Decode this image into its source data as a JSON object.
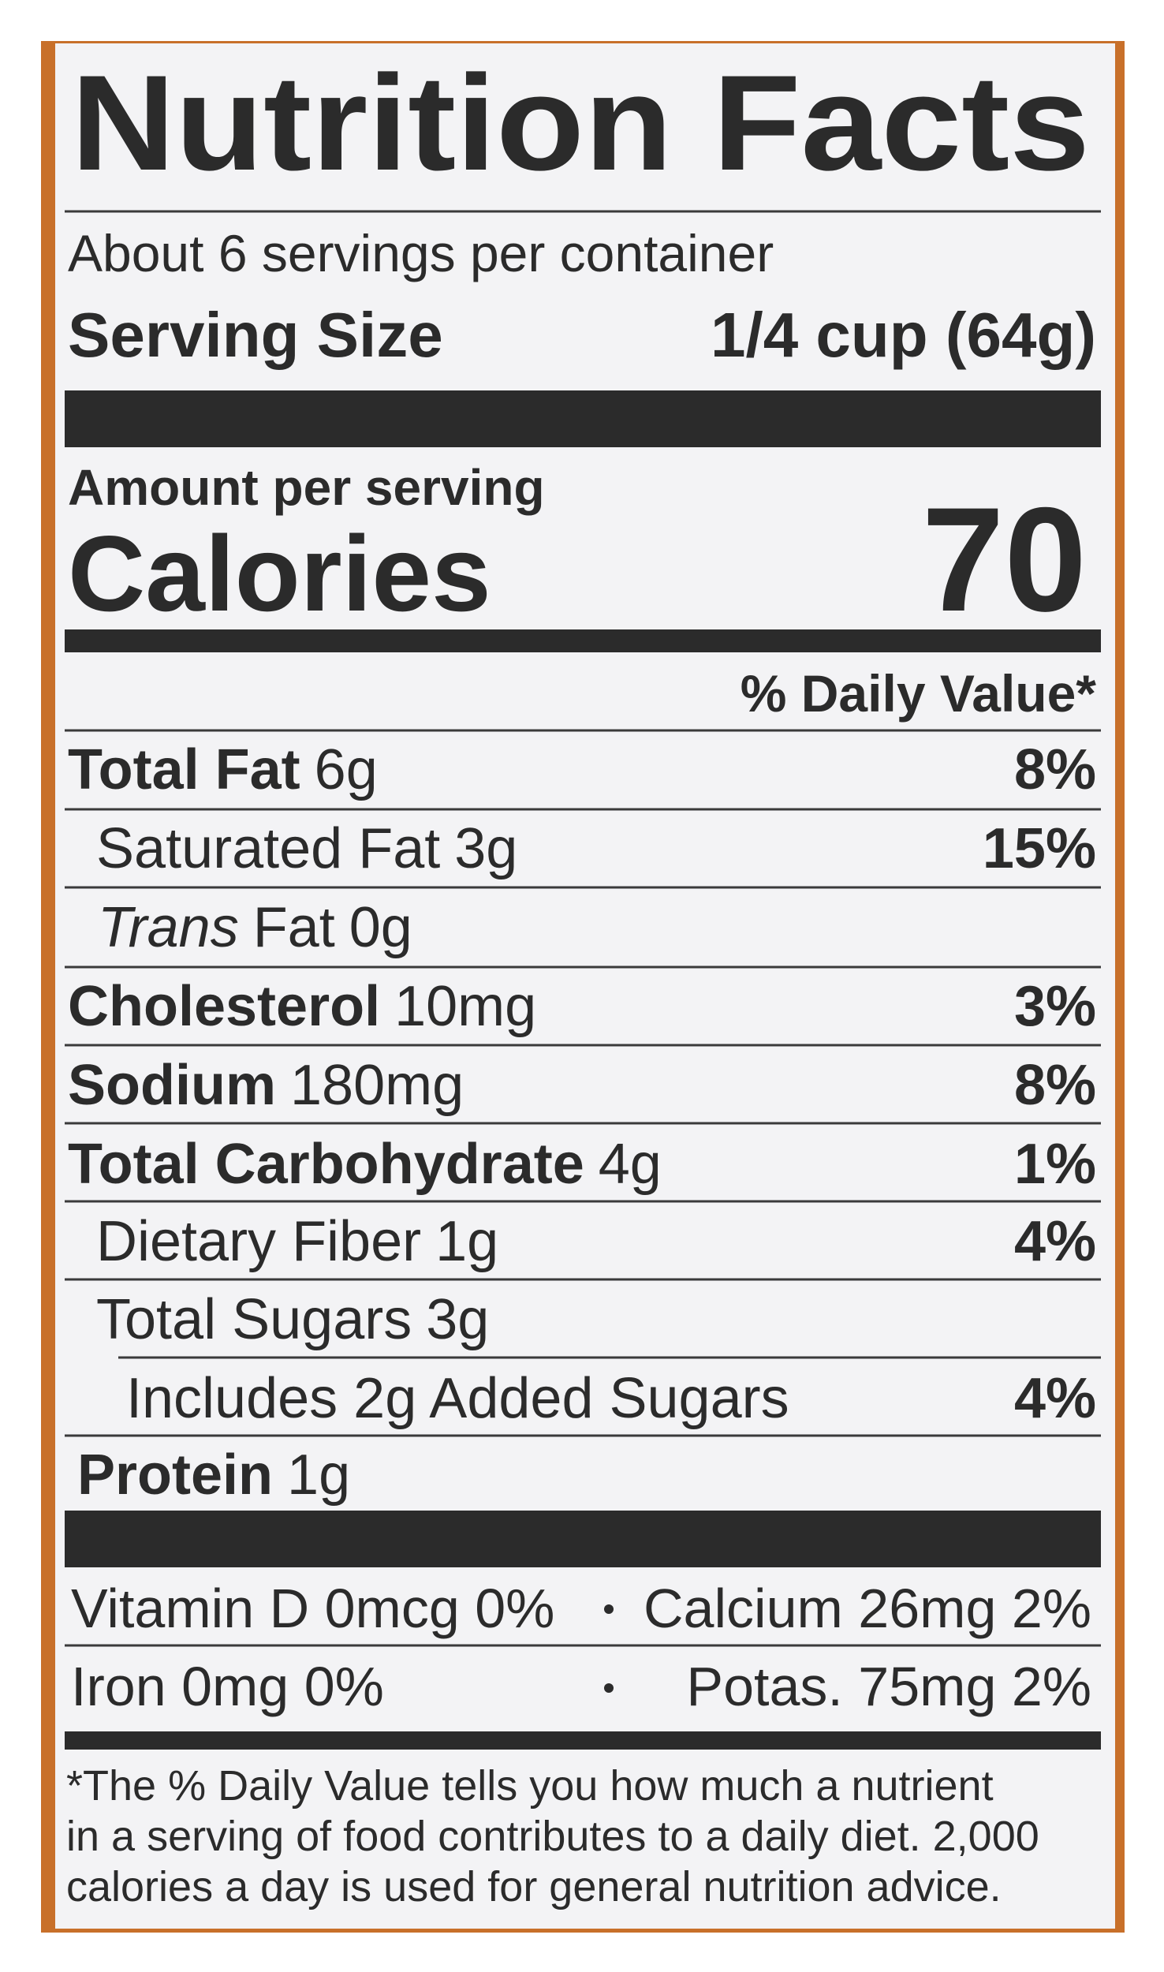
{
  "title": "Nutrition Facts",
  "servings": "About 6 servings per container",
  "serving_size": {
    "label": "Serving Size",
    "value": "1/4 cup (64g)"
  },
  "amount_per_serving": "Amount per serving",
  "calories": {
    "label": "Calories",
    "value": 70
  },
  "daily_value_header": "% Daily Value*",
  "nutrients": [
    {
      "name": "Total Fat",
      "amount": "6g",
      "dv": "8%"
    },
    {
      "name": "Saturated Fat",
      "amount": "3g",
      "dv": "15%"
    },
    {
      "qualifier": "Trans",
      "name": "Fat",
      "amount": "0g"
    },
    {
      "name": "Cholesterol",
      "amount": "10mg",
      "dv": "3%"
    },
    {
      "name": "Sodium",
      "amount": "180mg",
      "dv": "8%"
    },
    {
      "name": "Total Carbohydrate",
      "amount": "4g",
      "dv": "1%"
    },
    {
      "name": "Dietary Fiber",
      "amount": "1g",
      "dv": "4%"
    },
    {
      "name": "Total Sugars",
      "amount": "3g"
    },
    {
      "name": "Includes 2g Added Sugars",
      "dv": "4%"
    },
    {
      "name": "Protein",
      "amount": "1g"
    }
  ],
  "micronutrients": [
    [
      "Vitamin D 0mcg 0%",
      "Calcium 26mg 2%"
    ],
    [
      "Iron 0mg 0%",
      "Potas. 75mg 2%"
    ]
  ],
  "footnote": [
    "*The % Daily Value tells you how much a nutrient",
    "in a serving of food contributes to a daily diet. 2,000",
    "calories a day is used for general nutrition advice."
  ]
}
